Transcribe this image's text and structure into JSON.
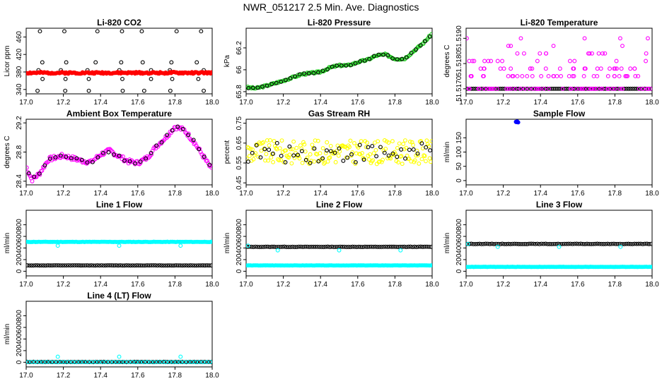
{
  "figure_title": "NWR_051217  2.5 Min. Ave. Diagnostics",
  "colors": {
    "black": "#000000",
    "red": "#ff0000",
    "green": "#22cc22",
    "magenta": "#ff00ff",
    "yellow": "#ffff00",
    "blue": "#0000ff",
    "cyan": "#00ffff"
  },
  "chart_data": [
    {
      "id": "co2",
      "type": "scatter",
      "title": "Li-820 CO2",
      "ylabel": "Licor ppm",
      "xlim": [
        17.0,
        18.0
      ],
      "xticks": [
        17.0,
        17.2,
        17.4,
        17.6,
        17.8,
        18.0
      ],
      "ylim": [
        330,
        480
      ],
      "yticks": [
        340,
        380,
        420,
        460
      ],
      "series": [
        {
          "name": "bands",
          "color": "black",
          "gen": "bands",
          "levels": [
            473,
            402,
            384,
            364,
            337
          ],
          "n": 7,
          "seed": 1
        },
        {
          "name": "ambient",
          "color": "red",
          "gen": "band",
          "level": 378,
          "amp": 2,
          "n": 170,
          "seed": 2,
          "filled": true
        }
      ]
    },
    {
      "id": "pressure",
      "type": "scatter",
      "title": "Li-820 Pressure",
      "ylabel": "kPa",
      "xlim": [
        17.0,
        18.0
      ],
      "xticks": [
        17.0,
        17.2,
        17.4,
        17.6,
        17.8,
        18.0
      ],
      "ylim": [
        65.78,
        66.38
      ],
      "yticks": [
        65.8,
        66.0,
        66.2
      ],
      "series": [
        {
          "name": "pressure",
          "color": "green",
          "gen": "curve",
          "kx": [
            17.0,
            17.05,
            17.1,
            17.2,
            17.3,
            17.4,
            17.45,
            17.5,
            17.55,
            17.6,
            17.65,
            17.7,
            17.75,
            17.8,
            17.85,
            17.9,
            17.95,
            18.0
          ],
          "ky": [
            65.84,
            65.83,
            65.85,
            65.9,
            65.96,
            65.98,
            66.02,
            66.04,
            66.04,
            66.07,
            66.09,
            66.13,
            66.14,
            66.1,
            66.1,
            66.17,
            66.24,
            66.33
          ],
          "noise": 0.008,
          "n": 160,
          "seed": 3
        },
        {
          "name": "reference",
          "color": "black",
          "gen": "curve",
          "kx": [
            17.0,
            17.05,
            17.1,
            17.2,
            17.3,
            17.4,
            17.45,
            17.5,
            17.55,
            17.6,
            17.65,
            17.7,
            17.75,
            17.8,
            17.85,
            17.9,
            17.95,
            18.0
          ],
          "ky": [
            65.84,
            65.83,
            65.85,
            65.9,
            65.96,
            65.98,
            66.02,
            66.04,
            66.04,
            66.07,
            66.09,
            66.13,
            66.14,
            66.1,
            66.1,
            66.17,
            66.24,
            66.33
          ],
          "noise": 0.006,
          "n": 40,
          "seed": 4
        }
      ]
    },
    {
      "id": "temperature",
      "type": "scatter",
      "title": "Li-820 Temperature",
      "ylabel": "degrees C",
      "xlim": [
        17.0,
        18.0
      ],
      "xticks": [
        17.0,
        17.2,
        17.4,
        17.6,
        17.8,
        18.0
      ],
      "ylim": [
        51.5168,
        51.5194
      ],
      "yticks": [
        51.517,
        51.518,
        51.519
      ],
      "ytick_labels": [
        "51.5170",
        "51.5180",
        "51.5190"
      ],
      "series": [
        {
          "name": "floor",
          "color": "black",
          "gen": "band",
          "level": 51.517,
          "amp": 0,
          "n": 90,
          "seed": 5
        },
        {
          "name": "spread",
          "color": "magenta",
          "gen": "levels",
          "levels": [
            51.517,
            51.5175,
            51.5178,
            51.5181,
            51.5184,
            51.5187,
            51.519
          ],
          "weights": [
            10,
            8,
            5,
            3,
            2,
            1,
            1
          ],
          "n": 150,
          "seed": 6
        }
      ]
    },
    {
      "id": "box_temp",
      "type": "scatter",
      "title": "Ambient Box Temperature",
      "ylabel": "degrees C",
      "xlim": [
        17.0,
        18.0
      ],
      "xticks": [
        17.0,
        17.2,
        17.4,
        17.6,
        17.8,
        18.0
      ],
      "ylim": [
        28.35,
        29.25
      ],
      "yticks": [
        28.4,
        28.8,
        29.2
      ],
      "series": [
        {
          "name": "box",
          "color": "magenta",
          "gen": "curve",
          "kx": [
            17.0,
            17.03,
            17.07,
            17.12,
            17.2,
            17.3,
            17.35,
            17.4,
            17.45,
            17.5,
            17.55,
            17.6,
            17.65,
            17.7,
            17.75,
            17.8,
            17.85,
            17.9,
            17.95,
            18.0
          ],
          "ky": [
            28.6,
            28.42,
            28.5,
            28.7,
            28.75,
            28.68,
            28.66,
            28.77,
            28.82,
            28.74,
            28.67,
            28.65,
            28.72,
            28.88,
            29.0,
            29.15,
            29.1,
            28.95,
            28.75,
            28.55
          ],
          "noise": 0.03,
          "n": 170,
          "seed": 7
        },
        {
          "name": "reference",
          "color": "black",
          "gen": "curve",
          "kx": [
            17.0,
            17.03,
            17.07,
            17.12,
            17.2,
            17.3,
            17.35,
            17.4,
            17.45,
            17.5,
            17.55,
            17.6,
            17.65,
            17.7,
            17.75,
            17.8,
            17.85,
            17.9,
            17.95,
            18.0
          ],
          "ky": [
            28.6,
            28.42,
            28.5,
            28.7,
            28.75,
            28.68,
            28.66,
            28.77,
            28.82,
            28.74,
            28.67,
            28.65,
            28.72,
            28.88,
            29.0,
            29.15,
            29.1,
            28.95,
            28.75,
            28.55
          ],
          "noise": 0.02,
          "n": 35,
          "seed": 8
        }
      ]
    },
    {
      "id": "rh",
      "type": "scatter",
      "title": "Gas Stream RH",
      "ylabel": "percent",
      "xlim": [
        17.0,
        18.0
      ],
      "xticks": [
        17.0,
        17.2,
        17.4,
        17.6,
        17.8,
        18.0
      ],
      "ylim": [
        0.44,
        0.77
      ],
      "yticks": [
        0.45,
        0.55,
        0.65,
        0.75
      ],
      "series": [
        {
          "name": "rh",
          "color": "yellow",
          "gen": "band",
          "level": 0.605,
          "amp": 0.06,
          "n": 190,
          "seed": 9
        },
        {
          "name": "reference",
          "color": "black",
          "gen": "band",
          "level": 0.6,
          "amp": 0.05,
          "n": 45,
          "seed": 10
        }
      ]
    },
    {
      "id": "sample_flow",
      "type": "scatter",
      "title": "Sample Flow",
      "ylabel": "ml/min",
      "xlim": [
        17.0,
        18.0
      ],
      "xticks": [
        17.0,
        17.2,
        17.4,
        17.6,
        17.8,
        18.0
      ],
      "ylim": [
        -15,
        215
      ],
      "yticks": [
        0,
        50,
        100,
        150
      ],
      "series": [
        {
          "name": "sample",
          "color": "blue",
          "gen": "points",
          "x": [
            17.27,
            17.275,
            17.28,
            17.268
          ],
          "y": [
            205,
            207,
            204,
            206
          ],
          "filled": true
        }
      ]
    },
    {
      "id": "line1",
      "type": "scatter",
      "title": "Line 1 Flow",
      "ylabel": "ml/min",
      "xlim": [
        17.0,
        18.0
      ],
      "xticks": [
        17.0,
        17.2,
        17.4,
        17.6,
        17.8,
        18.0
      ],
      "ylim": [
        -80,
        1050
      ],
      "yticks": [
        0,
        200,
        400,
        600,
        800
      ],
      "series": [
        {
          "name": "line1_flow",
          "color": "cyan",
          "gen": "band",
          "level": 505,
          "amp": 3,
          "n": 110,
          "seed": 11,
          "filled": true
        },
        {
          "name": "line1_low",
          "color": "black",
          "gen": "band",
          "level": 100,
          "amp": 2,
          "n": 90,
          "seed": 12
        },
        {
          "name": "line1_marks",
          "color": "cyan",
          "gen": "points",
          "x": [
            17.17,
            17.5,
            17.83
          ],
          "y": [
            440,
            440,
            440
          ]
        }
      ]
    },
    {
      "id": "line2",
      "type": "scatter",
      "title": "Line 2 Flow",
      "ylabel": "ml/min",
      "xlim": [
        17.0,
        18.0
      ],
      "xticks": [
        17.0,
        17.2,
        17.4,
        17.6,
        17.8,
        18.0
      ],
      "ylim": [
        -80,
        1050
      ],
      "yticks": [
        0,
        200,
        400,
        600,
        800
      ],
      "series": [
        {
          "name": "line2_high",
          "color": "black",
          "gen": "band",
          "level": 420,
          "amp": 3,
          "n": 90,
          "seed": 13
        },
        {
          "name": "line2_low",
          "color": "cyan",
          "gen": "band",
          "level": 100,
          "amp": 2,
          "n": 110,
          "seed": 14,
          "filled": true
        },
        {
          "name": "line2_marks",
          "color": "cyan",
          "gen": "points",
          "x": [
            17.01,
            17.17,
            17.5,
            17.83
          ],
          "y": [
            440,
            360,
            360,
            360
          ]
        }
      ]
    },
    {
      "id": "line3",
      "type": "scatter",
      "title": "Line 3 Flow",
      "ylabel": "ml/min",
      "xlim": [
        17.0,
        18.0
      ],
      "xticks": [
        17.0,
        17.2,
        17.4,
        17.6,
        17.8,
        18.0
      ],
      "ylim": [
        -80,
        1050
      ],
      "yticks": [
        0,
        200,
        400,
        600,
        800
      ],
      "series": [
        {
          "name": "line3_high",
          "color": "black",
          "gen": "band",
          "level": 470,
          "amp": 3,
          "n": 90,
          "seed": 15
        },
        {
          "name": "line3_low",
          "color": "cyan",
          "gen": "band",
          "level": 75,
          "amp": 2,
          "n": 110,
          "seed": 16,
          "filled": true
        },
        {
          "name": "line3_marks",
          "color": "cyan",
          "gen": "points",
          "x": [
            17.01,
            17.17,
            17.5,
            17.83
          ],
          "y": [
            470,
            420,
            420,
            420
          ]
        }
      ]
    },
    {
      "id": "line4",
      "type": "scatter",
      "title": "Line 4 (LT) Flow",
      "ylabel": "ml/min",
      "xlim": [
        17.0,
        18.0
      ],
      "xticks": [
        17.0,
        17.2,
        17.4,
        17.6,
        17.8,
        18.0
      ],
      "ylim": [
        -80,
        1050
      ],
      "yticks": [
        0,
        200,
        400,
        600,
        800
      ],
      "series": [
        {
          "name": "line4_base",
          "color": "black",
          "gen": "band",
          "level": 5,
          "amp": 2,
          "n": 90,
          "seed": 17
        },
        {
          "name": "line4_cyan",
          "color": "cyan",
          "gen": "band",
          "level": 3,
          "amp": 2,
          "n": 50,
          "seed": 18
        },
        {
          "name": "line4_marks",
          "color": "cyan",
          "gen": "points",
          "x": [
            17.17,
            17.5,
            17.83
          ],
          "y": [
            95,
            95,
            95
          ]
        }
      ]
    }
  ]
}
